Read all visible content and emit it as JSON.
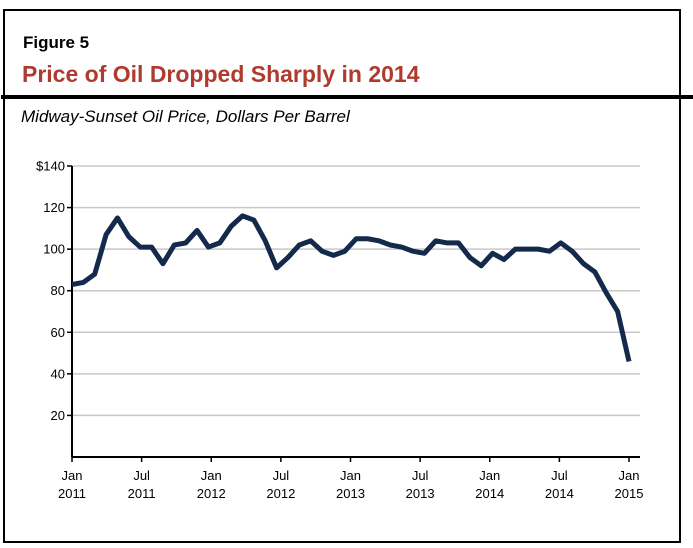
{
  "header": {
    "figure_label": "Figure 5",
    "title": "Price of Oil Dropped Sharply in 2014",
    "subtitle": "Midway-Sunset Oil Price, Dollars Per Barrel"
  },
  "chart_data": {
    "type": "line",
    "title": "Price of Oil Dropped Sharply in 2014",
    "ylabel": "Midway-Sunset Oil Price, Dollars Per Barrel",
    "ylim": [
      0,
      140
    ],
    "yticks": [
      20,
      40,
      60,
      80,
      100,
      120,
      140
    ],
    "ytick_labels": [
      "20",
      "40",
      "60",
      "80",
      "100",
      "120",
      "$140"
    ],
    "xticks": [
      {
        "month": 0,
        "line1": "Jan",
        "line2": "2011"
      },
      {
        "month": 6,
        "line1": "Jul",
        "line2": "2011"
      },
      {
        "month": 12,
        "line1": "Jan",
        "line2": "2012"
      },
      {
        "month": 18,
        "line1": "Jul",
        "line2": "2012"
      },
      {
        "month": 24,
        "line1": "Jan",
        "line2": "2013"
      },
      {
        "month": 30,
        "line1": "Jul",
        "line2": "2013"
      },
      {
        "month": 36,
        "line1": "Jan",
        "line2": "2014"
      },
      {
        "month": 42,
        "line1": "Jul",
        "line2": "2014"
      },
      {
        "month": 48,
        "line1": "Jan",
        "line2": "2015"
      }
    ],
    "x_range": [
      "Jan 2011",
      "Jan 2015"
    ],
    "grid": true,
    "line_color": "#132a4a",
    "values": [
      83,
      84,
      88,
      107,
      115,
      106,
      101,
      101,
      93,
      102,
      103,
      109,
      101,
      103,
      111,
      116,
      114,
      104,
      91,
      96,
      102,
      104,
      99,
      97,
      99,
      105,
      105,
      104,
      102,
      101,
      99,
      98,
      104,
      103,
      103,
      96,
      92,
      98,
      95,
      100,
      100,
      100,
      99,
      103,
      99,
      93,
      89,
      79,
      70,
      46
    ]
  }
}
